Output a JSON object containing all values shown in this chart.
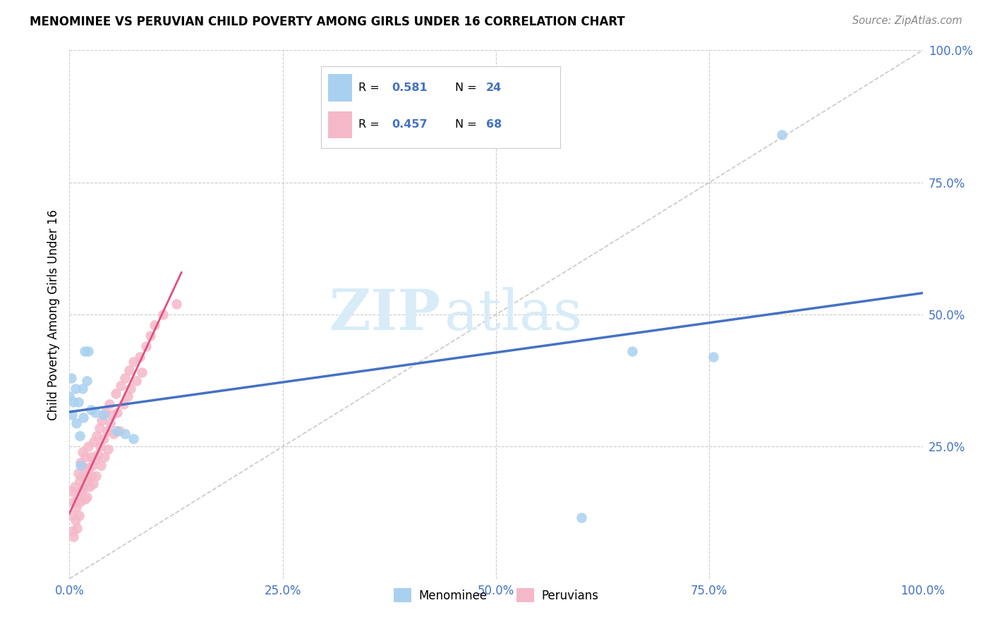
{
  "title": "MENOMINEE VS PERUVIAN CHILD POVERTY AMONG GIRLS UNDER 16 CORRELATION CHART",
  "source": "Source: ZipAtlas.com",
  "ylabel": "Child Poverty Among Girls Under 16",
  "xlim": [
    0,
    1
  ],
  "ylim": [
    0,
    1
  ],
  "blue_color": "#A8D0F0",
  "pink_color": "#F5B8C8",
  "blue_line_color": "#4472C4",
  "pink_line_color": "#E05080",
  "diagonal_color": "#C8C8C8",
  "watermark_color": "#D8ECF8",
  "legend_menominee": "Menominee",
  "legend_peruvian": "Peruvians",
  "menominee_x": [
    0.0,
    0.002,
    0.003,
    0.005,
    0.007,
    0.008,
    0.01,
    0.012,
    0.013,
    0.015,
    0.016,
    0.018,
    0.02,
    0.022,
    0.025,
    0.03,
    0.04,
    0.055,
    0.065,
    0.075,
    0.6,
    0.66,
    0.755,
    0.835
  ],
  "menominee_y": [
    0.345,
    0.38,
    0.31,
    0.335,
    0.36,
    0.295,
    0.335,
    0.27,
    0.215,
    0.36,
    0.305,
    0.43,
    0.375,
    0.43,
    0.32,
    0.315,
    0.31,
    0.28,
    0.275,
    0.265,
    0.115,
    0.43,
    0.42,
    0.84
  ],
  "peruvian_x": [
    0.002,
    0.003,
    0.004,
    0.005,
    0.005,
    0.006,
    0.007,
    0.008,
    0.009,
    0.01,
    0.01,
    0.011,
    0.012,
    0.012,
    0.013,
    0.014,
    0.015,
    0.015,
    0.016,
    0.017,
    0.018,
    0.019,
    0.02,
    0.02,
    0.021,
    0.022,
    0.023,
    0.024,
    0.025,
    0.026,
    0.027,
    0.028,
    0.029,
    0.03,
    0.031,
    0.032,
    0.033,
    0.035,
    0.036,
    0.037,
    0.038,
    0.04,
    0.041,
    0.042,
    0.044,
    0.045,
    0.047,
    0.048,
    0.05,
    0.052,
    0.054,
    0.056,
    0.058,
    0.06,
    0.063,
    0.065,
    0.068,
    0.07,
    0.072,
    0.075,
    0.078,
    0.082,
    0.085,
    0.09,
    0.095,
    0.1,
    0.11,
    0.125
  ],
  "peruvian_y": [
    0.165,
    0.12,
    0.09,
    0.145,
    0.08,
    0.175,
    0.11,
    0.135,
    0.095,
    0.2,
    0.155,
    0.12,
    0.185,
    0.145,
    0.22,
    0.165,
    0.24,
    0.195,
    0.17,
    0.21,
    0.15,
    0.23,
    0.195,
    0.155,
    0.185,
    0.25,
    0.21,
    0.175,
    0.23,
    0.195,
    0.215,
    0.18,
    0.26,
    0.225,
    0.195,
    0.27,
    0.235,
    0.285,
    0.25,
    0.215,
    0.3,
    0.265,
    0.23,
    0.315,
    0.28,
    0.245,
    0.33,
    0.295,
    0.31,
    0.275,
    0.35,
    0.315,
    0.28,
    0.365,
    0.33,
    0.38,
    0.345,
    0.395,
    0.36,
    0.41,
    0.375,
    0.42,
    0.39,
    0.44,
    0.46,
    0.48,
    0.5,
    0.52
  ]
}
